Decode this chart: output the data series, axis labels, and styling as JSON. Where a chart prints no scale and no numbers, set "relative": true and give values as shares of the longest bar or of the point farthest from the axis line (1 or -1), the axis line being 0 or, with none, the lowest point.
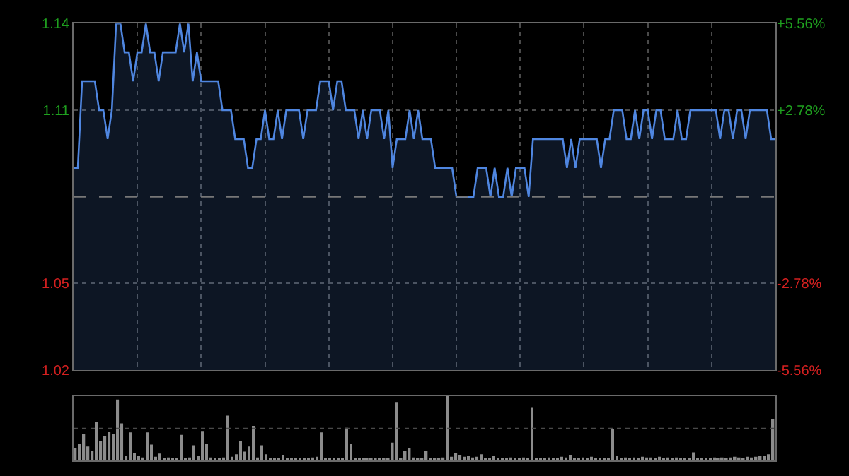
{
  "chart_data": [
    {
      "type": "area",
      "categories": [
        null,
        null,
        null,
        null,
        null,
        null,
        null,
        null,
        null,
        null,
        null,
        null,
        null,
        null,
        null,
        null,
        null,
        null,
        null,
        null,
        null,
        null,
        null,
        null,
        null,
        null,
        null,
        null,
        null,
        null,
        null,
        null,
        null,
        null,
        null,
        null,
        null,
        null,
        null,
        null,
        null,
        null,
        null,
        null,
        null,
        null,
        null,
        null,
        null,
        null,
        null,
        null,
        null,
        null,
        null,
        null,
        null,
        null,
        null,
        null,
        null,
        null,
        null,
        null,
        null,
        null,
        null,
        null,
        null,
        null,
        null,
        null,
        null,
        null,
        null,
        null,
        null,
        null,
        null,
        null,
        null,
        null,
        null,
        null,
        null,
        null,
        null,
        null,
        null,
        null,
        null,
        null,
        null,
        null,
        null,
        null,
        null,
        null,
        null,
        null,
        null,
        null,
        null,
        null,
        null,
        null,
        null,
        null,
        null,
        null,
        null,
        null,
        null,
        null,
        null,
        null,
        null,
        null,
        null,
        null,
        null,
        null,
        null,
        null,
        null,
        null,
        null,
        null,
        null,
        null,
        null,
        null,
        null,
        null,
        null,
        null,
        null,
        null,
        null,
        null,
        null,
        null,
        null,
        null,
        null,
        null,
        null,
        null,
        null,
        null,
        null,
        null,
        null,
        null,
        null,
        null,
        null,
        null,
        null,
        null,
        null,
        null,
        null,
        null,
        null,
        null
      ],
      "series": [
        {
          "color": "#4f86e0",
          "values": [
            1.09,
            1.09,
            1.12,
            1.12,
            1.12,
            1.12,
            1.11,
            1.11,
            1.1,
            1.11,
            1.14,
            1.14,
            1.13,
            1.13,
            1.12,
            1.13,
            1.13,
            1.14,
            1.13,
            1.13,
            1.12,
            1.13,
            1.13,
            1.13,
            1.13,
            1.14,
            1.13,
            1.14,
            1.12,
            1.13,
            1.12,
            1.12,
            1.12,
            1.12,
            1.12,
            1.11,
            1.11,
            1.11,
            1.1,
            1.1,
            1.1,
            1.09,
            1.09,
            1.1,
            1.1,
            1.11,
            1.1,
            1.1,
            1.11,
            1.1,
            1.11,
            1.11,
            1.11,
            1.11,
            1.1,
            1.11,
            1.11,
            1.11,
            1.12,
            1.12,
            1.12,
            1.11,
            1.12,
            1.12,
            1.11,
            1.11,
            1.11,
            1.1,
            1.11,
            1.1,
            1.11,
            1.11,
            1.11,
            1.1,
            1.11,
            1.09,
            1.1,
            1.1,
            1.1,
            1.11,
            1.1,
            1.11,
            1.1,
            1.1,
            1.1,
            1.09,
            1.09,
            1.09,
            1.09,
            1.09,
            1.08,
            1.08,
            1.08,
            1.08,
            1.08,
            1.09,
            1.09,
            1.09,
            1.08,
            1.09,
            1.08,
            1.08,
            1.09,
            1.08,
            1.09,
            1.09,
            1.09,
            1.08,
            1.1,
            1.1,
            1.1,
            1.1,
            1.1,
            1.1,
            1.1,
            1.1,
            1.09,
            1.1,
            1.09,
            1.1,
            1.1,
            1.1,
            1.1,
            1.1,
            1.09,
            1.1,
            1.1,
            1.11,
            1.11,
            1.11,
            1.1,
            1.1,
            1.11,
            1.1,
            1.11,
            1.11,
            1.1,
            1.11,
            1.11,
            1.1,
            1.1,
            1.1,
            1.11,
            1.1,
            1.1,
            1.11,
            1.11,
            1.11,
            1.11,
            1.11,
            1.11,
            1.11,
            1.1,
            1.11,
            1.11,
            1.1,
            1.11,
            1.11,
            1.1,
            1.11,
            1.11,
            1.11,
            1.11,
            1.11,
            1.1,
            1.1
          ]
        }
      ],
      "ylim": [
        1.02,
        1.14
      ],
      "yticks": [
        1.02,
        1.05,
        1.11,
        1.14
      ],
      "y2lim": [
        -5.56,
        5.56
      ],
      "y2ticks": [
        {
          "value": -5.56,
          "label": "-5.56%"
        },
        {
          "value": -2.78,
          "label": "-2.78%"
        },
        {
          "value": 2.78,
          "label": "+2.78%"
        },
        {
          "value": 5.56,
          "label": "+5.56%"
        }
      ],
      "ref_lines": [
        {
          "axis": "y",
          "value": 1.08,
          "line_style": "dashed"
        }
      ],
      "grid": true,
      "tick_labels": "y"
    },
    {
      "type": "bar",
      "relative": true,
      "color": "#8c8c8c",
      "categories": [
        null,
        null,
        null,
        null,
        null,
        null,
        null,
        null,
        null,
        null,
        null,
        null,
        null,
        null,
        null,
        null,
        null,
        null,
        null,
        null,
        null,
        null,
        null,
        null,
        null,
        null,
        null,
        null,
        null,
        null,
        null,
        null,
        null,
        null,
        null,
        null,
        null,
        null,
        null,
        null,
        null,
        null,
        null,
        null,
        null,
        null,
        null,
        null,
        null,
        null,
        null,
        null,
        null,
        null,
        null,
        null,
        null,
        null,
        null,
        null,
        null,
        null,
        null,
        null,
        null,
        null,
        null,
        null,
        null,
        null,
        null,
        null,
        null,
        null,
        null,
        null,
        null,
        null,
        null,
        null,
        null,
        null,
        null,
        null,
        null,
        null,
        null,
        null,
        null,
        null,
        null,
        null,
        null,
        null,
        null,
        null,
        null,
        null,
        null,
        null,
        null,
        null,
        null,
        null,
        null,
        null,
        null,
        null,
        null,
        null,
        null,
        null,
        null,
        null,
        null,
        null,
        null,
        null,
        null,
        null,
        null,
        null,
        null,
        null,
        null,
        null,
        null,
        null,
        null,
        null,
        null,
        null,
        null,
        null,
        null,
        null,
        null,
        null,
        null,
        null,
        null,
        null,
        null,
        null,
        null,
        null,
        null,
        null,
        null,
        null,
        null,
        null,
        null,
        null,
        null,
        null,
        null,
        null,
        null,
        null,
        null,
        null,
        null,
        null,
        null,
        null
      ],
      "values": [
        0.19,
        0.26,
        0.42,
        0.22,
        0.15,
        0.6,
        0.3,
        0.38,
        0.45,
        0.42,
        0.95,
        0.58,
        0.08,
        0.44,
        0.12,
        0.08,
        0.05,
        0.44,
        0.25,
        0.06,
        0.11,
        0.04,
        0.05,
        0.03,
        0.04,
        0.4,
        0.04,
        0.05,
        0.24,
        0.08,
        0.46,
        0.26,
        0.05,
        0.04,
        0.04,
        0.05,
        0.7,
        0.06,
        0.1,
        0.3,
        0.14,
        0.22,
        0.54,
        0.05,
        0.24,
        0.1,
        0.04,
        0.03,
        0.04,
        0.09,
        0.03,
        0.03,
        0.04,
        0.03,
        0.04,
        0.03,
        0.05,
        0.06,
        0.44,
        0.04,
        0.03,
        0.04,
        0.03,
        0.04,
        0.51,
        0.26,
        0.04,
        0.03,
        0.03,
        0.04,
        0.03,
        0.03,
        0.04,
        0.03,
        0.04,
        0.28,
        0.91,
        0.04,
        0.15,
        0.2,
        0.05,
        0.04,
        0.04,
        0.15,
        0.04,
        0.03,
        0.04,
        0.05,
        1.0,
        0.06,
        0.12,
        0.09,
        0.06,
        0.08,
        0.05,
        0.06,
        0.1,
        0.04,
        0.04,
        0.08,
        0.04,
        0.03,
        0.04,
        0.05,
        0.04,
        0.04,
        0.05,
        0.04,
        0.82,
        0.03,
        0.04,
        0.03,
        0.05,
        0.04,
        0.04,
        0.06,
        0.05,
        0.09,
        0.04,
        0.03,
        0.05,
        0.04,
        0.06,
        0.04,
        0.03,
        0.04,
        0.03,
        0.49,
        0.08,
        0.04,
        0.05,
        0.04,
        0.05,
        0.04,
        0.06,
        0.05,
        0.05,
        0.04,
        0.06,
        0.04,
        0.05,
        0.04,
        0.05,
        0.04,
        0.03,
        0.04,
        0.13,
        0.04,
        0.03,
        0.04,
        0.03,
        0.05,
        0.04,
        0.05,
        0.04,
        0.05,
        0.06,
        0.05,
        0.04,
        0.06,
        0.05,
        0.06,
        0.08,
        0.07,
        0.1,
        0.65
      ],
      "ref_lines": [
        {
          "axis": "y",
          "value": 0.5,
          "line_style": "dotted",
          "color": "#4a4a4a"
        }
      ],
      "tick_labels": false
    }
  ]
}
